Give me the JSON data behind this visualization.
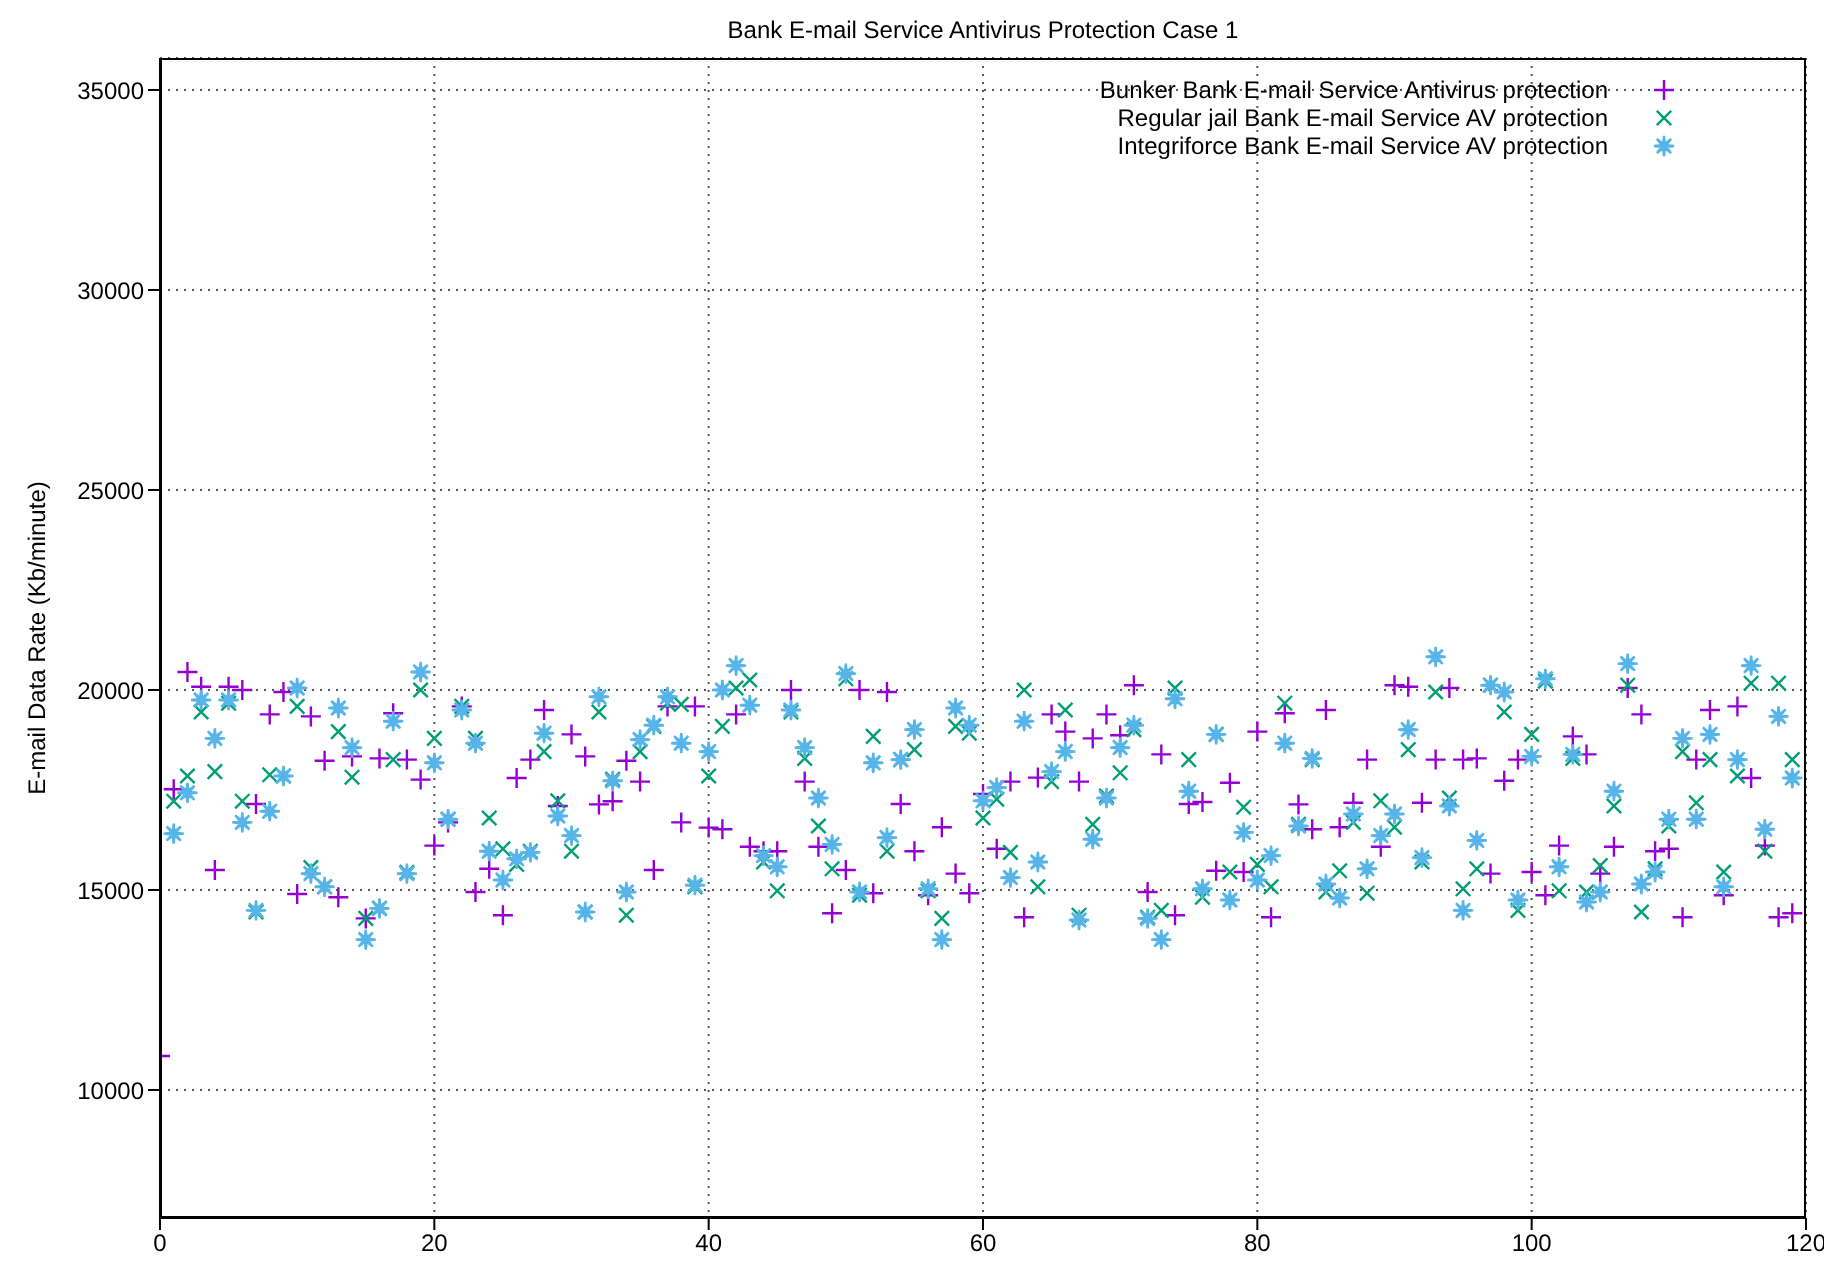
{
  "chart_data": {
    "type": "scatter",
    "title": "Bank E-mail Service Antivirus Protection Case 1",
    "ylabel": "E-mail Data Rate (Kb/minute)",
    "x": [
      0,
      1,
      2,
      3,
      4,
      5,
      6,
      7,
      8,
      9,
      10,
      11,
      12,
      13,
      14,
      15,
      16,
      17,
      18,
      19,
      20,
      21,
      22,
      23,
      24,
      25,
      26,
      27,
      28,
      29,
      30,
      31,
      32,
      33,
      34,
      35,
      36,
      37,
      38,
      39,
      40,
      41,
      42,
      43,
      44,
      45,
      46,
      47,
      48,
      49,
      50,
      51,
      52,
      53,
      54,
      55,
      56,
      57,
      58,
      59,
      60,
      61,
      62,
      63,
      64,
      65,
      66,
      67,
      68,
      69,
      70,
      71,
      72,
      73,
      74,
      75,
      76,
      77,
      78,
      79,
      80,
      81,
      82,
      83,
      84,
      85,
      86,
      87,
      88,
      89,
      90,
      91,
      92,
      93,
      94,
      95,
      96,
      97,
      98,
      99,
      100,
      101,
      102,
      103,
      104,
      105,
      106,
      107,
      108,
      109,
      110,
      111,
      112,
      113,
      114,
      115,
      116,
      117,
      118,
      119
    ],
    "series": [
      {
        "name": "Bunker Bank E-mail Service Antivirus protection",
        "color": "#9400d3",
        "marker": "plus",
        "values": [
          10850,
          17520,
          20450,
          20080,
          15500,
          20080,
          20000,
          17150,
          19390,
          19950,
          14900,
          19340,
          18230,
          14820,
          18340,
          14290,
          18290,
          19420,
          18260,
          17760,
          16110,
          16690,
          19590,
          14950,
          15530,
          14370,
          17800,
          18260,
          19500,
          17100,
          18890,
          18340,
          17140,
          17220,
          18230,
          17710,
          15500,
          19590,
          16690,
          19590,
          16560,
          16520,
          19390,
          16080,
          15970,
          15970,
          20000,
          17710,
          16080,
          14420,
          15500,
          20000,
          14920,
          19950,
          17150,
          15970,
          14870,
          16570,
          15410,
          14920,
          17400,
          16030,
          17710,
          14320,
          17810,
          19390,
          18960,
          17710,
          18790,
          19390,
          18870,
          20120,
          14950,
          18390,
          14370,
          17150,
          17200,
          15480,
          17680,
          15450,
          18960,
          14320,
          19420,
          17140,
          16520,
          19500,
          16570,
          17180,
          18260,
          16080,
          20120,
          20080,
          17180,
          18260,
          20050,
          18260,
          18290,
          15410,
          17730,
          18260,
          15450,
          14870,
          16110,
          18840,
          18390,
          15410,
          16080,
          20050,
          19390,
          15970,
          16030,
          14320,
          18260,
          19500,
          14870,
          19590,
          17800,
          16110,
          14320,
          14420
        ]
      },
      {
        "name": "Regular jail Bank E-mail Service AV protection",
        "color": "#009e73",
        "marker": "cross",
        "values": [
          null,
          17220,
          17850,
          19450,
          17960,
          19670,
          17220,
          14450,
          17880,
          17850,
          19590,
          15560,
          15080,
          18960,
          17820,
          14290,
          14540,
          18260,
          15440,
          20000,
          18790,
          16770,
          19590,
          18790,
          16800,
          16030,
          15640,
          15970,
          18460,
          17230,
          15970,
          14450,
          19450,
          17770,
          14370,
          18460,
          19090,
          19670,
          19640,
          15080,
          17850,
          19090,
          20050,
          20250,
          15700,
          14980,
          19450,
          18290,
          16600,
          15530,
          20280,
          14870,
          18840,
          15970,
          18260,
          18510,
          14980,
          14290,
          19090,
          18920,
          16800,
          17270,
          15940,
          20000,
          15080,
          17710,
          19500,
          14370,
          16640,
          17350,
          17930,
          19010,
          14320,
          14490,
          20050,
          18260,
          14820,
          18890,
          15450,
          17070,
          15640,
          15080,
          19670,
          16640,
          18260,
          14950,
          15480,
          16690,
          14920,
          17230,
          16570,
          18510,
          15700,
          19950,
          17300,
          15030,
          15530,
          20120,
          19450,
          14490,
          18890,
          20220,
          14980,
          18290,
          14950,
          15610,
          17100,
          20120,
          14450,
          15530,
          16600,
          18460,
          17180,
          18260,
          15450,
          17850,
          20170,
          15970,
          20170,
          18260
        ]
      },
      {
        "name": "Integriforce Bank E-mail Service AV protection",
        "color": "#56b4e9",
        "marker": "star",
        "values": [
          null,
          16410,
          17430,
          19750,
          18790,
          19750,
          16690,
          14490,
          16970,
          17850,
          20050,
          15410,
          15080,
          19550,
          18560,
          13760,
          14540,
          19220,
          15410,
          20450,
          18180,
          16770,
          19500,
          18670,
          15970,
          15250,
          15780,
          15940,
          18920,
          16850,
          16360,
          14450,
          19830,
          17730,
          14950,
          18760,
          19120,
          19830,
          18670,
          15120,
          18460,
          20000,
          20610,
          19620,
          15860,
          15580,
          19500,
          18560,
          17300,
          16140,
          20410,
          14950,
          18180,
          16310,
          18260,
          19010,
          15030,
          13760,
          19550,
          19120,
          17230,
          17560,
          15310,
          19220,
          15700,
          17960,
          18460,
          14250,
          16270,
          17300,
          18560,
          19120,
          14290,
          13760,
          19780,
          17470,
          15030,
          18890,
          14750,
          16440,
          15250,
          15860,
          18670,
          16600,
          18290,
          15150,
          14800,
          16900,
          15530,
          16360,
          16900,
          19010,
          15810,
          20830,
          17100,
          14490,
          16240,
          20120,
          19950,
          14750,
          18340,
          20280,
          15580,
          18390,
          14700,
          14950,
          17470,
          20660,
          15150,
          15450,
          16770,
          18790,
          16770,
          18890,
          15080,
          18260,
          20610,
          16520,
          19340,
          17800
        ]
      }
    ],
    "xlim": [
      0,
      120
    ],
    "xticks": [
      0,
      20,
      40,
      60,
      80,
      100,
      120
    ],
    "ylim": [
      6800,
      35800
    ],
    "yticks": [
      10000,
      15000,
      20000,
      25000,
      30000,
      35000
    ],
    "grid": true,
    "legend": "top right"
  }
}
